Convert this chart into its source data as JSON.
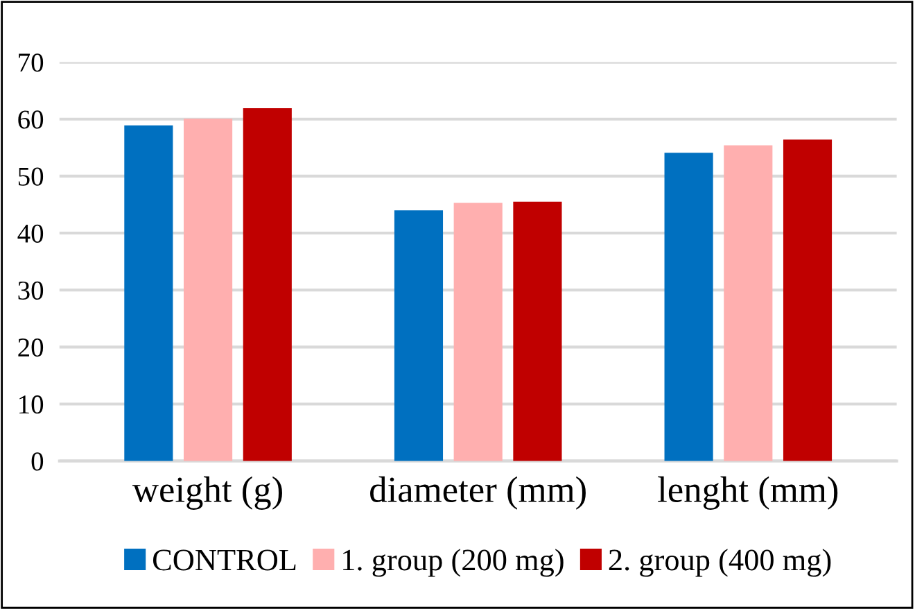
{
  "chart_data": {
    "type": "bar",
    "categories": [
      "weight (g)",
      "diameter (mm)",
      "lenght (mm)"
    ],
    "series": [
      {
        "name": "CONTROL",
        "color": "#0070c0",
        "values": [
          58.9,
          44.0,
          54.1
        ]
      },
      {
        "name": "1. group (200 mg)",
        "color": "#ffafaf",
        "values": [
          60.1,
          45.3,
          55.4
        ]
      },
      {
        "name": "2. group (400 mg)",
        "color": "#c00000",
        "values": [
          61.9,
          45.5,
          56.4
        ]
      }
    ],
    "ylim": [
      0,
      70
    ],
    "yticks": [
      0,
      10,
      20,
      30,
      40,
      50,
      60,
      70
    ],
    "grid": "y",
    "legend": "bottom"
  }
}
